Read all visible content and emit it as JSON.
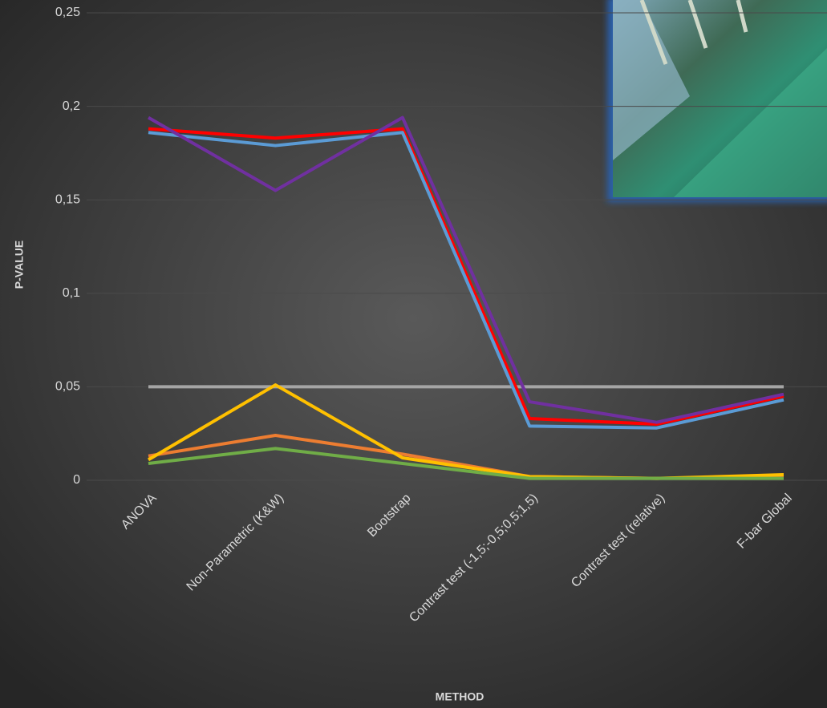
{
  "chart_data": {
    "type": "line",
    "y_label": "P-VALUE",
    "x_label": "METHOD",
    "categories": [
      "ANOVA",
      "Non-Parametric (K&W)",
      "Bootstrap",
      "Contrast test (-1,5;-0,5;0,5;1,5)",
      "Contrast test (relative)",
      "F-bar Global"
    ],
    "series": [
      {
        "color": "#a5a5a5",
        "values": [
          0.05,
          0.05,
          0.05,
          0.05,
          0.05,
          0.05
        ]
      },
      {
        "color": "#ed7d31",
        "values": [
          0.013,
          0.024,
          0.014,
          0.002,
          0.001,
          0.002
        ]
      },
      {
        "color": "#ffc000",
        "values": [
          0.011,
          0.051,
          0.012,
          0.002,
          0.001,
          0.003
        ]
      },
      {
        "color": "#70ad47",
        "values": [
          0.009,
          0.017,
          0.009,
          0.001,
          0.001,
          0.001
        ]
      },
      {
        "color": "#ff0000",
        "values": [
          0.188,
          0.183,
          0.188,
          0.033,
          0.03,
          0.045
        ]
      },
      {
        "color": "#5b9bd5",
        "values": [
          0.186,
          0.179,
          0.186,
          0.029,
          0.028,
          0.043
        ]
      },
      {
        "color": "#7030a0",
        "values": [
          0.194,
          0.155,
          0.194,
          0.042,
          0.031,
          0.046
        ]
      }
    ],
    "ylim": [
      0,
      0.25
    ],
    "yticks": [
      0,
      {
        "value": 0.05,
        "label": "0,05"
      },
      {
        "value": 0.1,
        "label": "0,1"
      },
      {
        "value": 0.15,
        "label": "0,15"
      },
      {
        "value": 0.2,
        "label": "0,2"
      },
      {
        "value": 0.25,
        "label": "0,25"
      }
    ],
    "grid": true
  }
}
